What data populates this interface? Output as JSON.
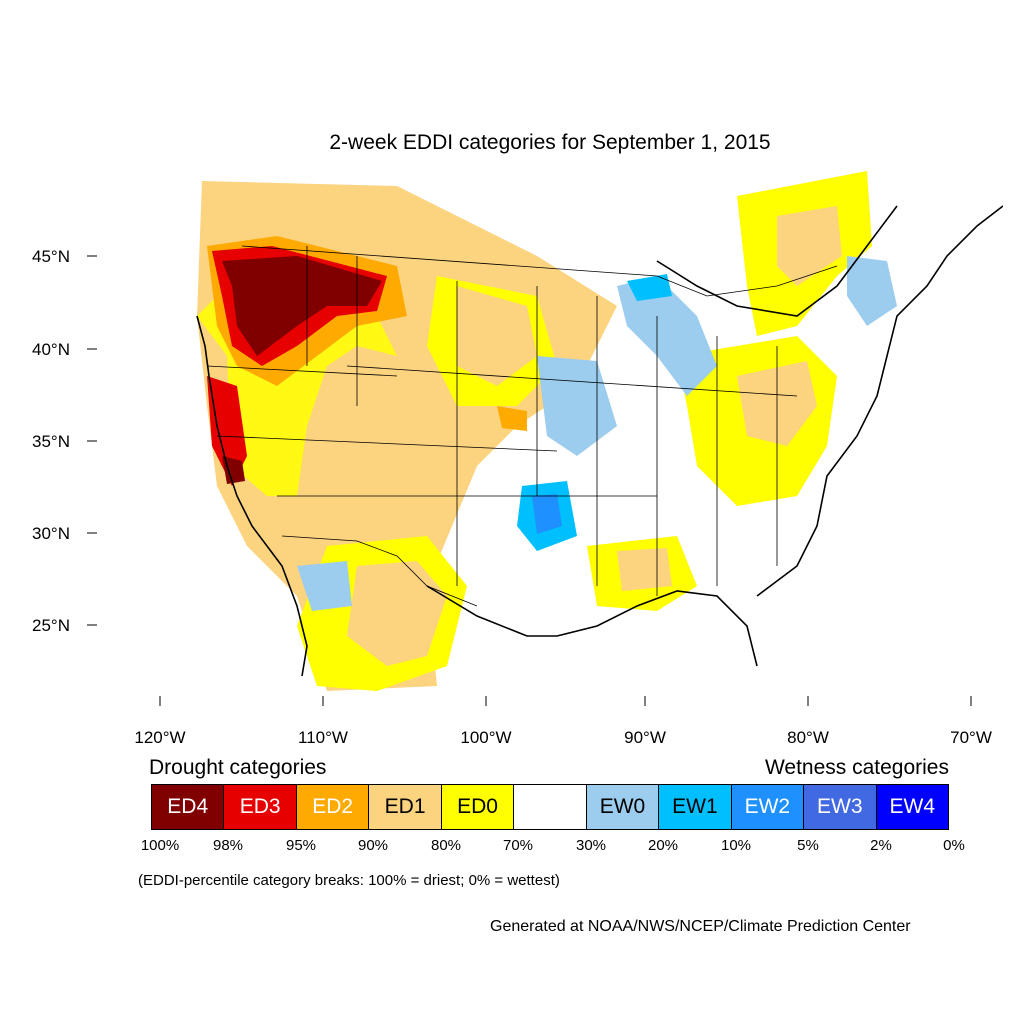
{
  "title": "2-week EDDI categories for September 1, 2015",
  "lat_labels": [
    "45°N",
    "40°N",
    "35°N",
    "30°N",
    "25°N"
  ],
  "lon_labels": [
    "120°W",
    "110°W",
    "100°W",
    "90°W",
    "80°W",
    "70°W"
  ],
  "drought_heading": "Drought categories",
  "wetness_heading": "Wetness categories",
  "categories": [
    {
      "label": "ED4",
      "color": "#800000",
      "text_color": "#ffffff"
    },
    {
      "label": "ED3",
      "color": "#e60000",
      "text_color": "#ffffff"
    },
    {
      "label": "ED2",
      "color": "#ffaa00",
      "text_color": "#ffffff"
    },
    {
      "label": "ED1",
      "color": "#fcd37f",
      "text_color": "#000000"
    },
    {
      "label": "ED0",
      "color": "#ffff00",
      "text_color": "#000000"
    },
    {
      "label": "",
      "color": "#ffffff",
      "text_color": "#000000"
    },
    {
      "label": "EW0",
      "color": "#9dcdee",
      "text_color": "#000000"
    },
    {
      "label": "EW1",
      "color": "#00bfff",
      "text_color": "#000000"
    },
    {
      "label": "EW2",
      "color": "#1e90ff",
      "text_color": "#ffffff"
    },
    {
      "label": "EW3",
      "color": "#4169e1",
      "text_color": "#ffffff"
    },
    {
      "label": "EW4",
      "color": "#0000ff",
      "text_color": "#ffffff"
    }
  ],
  "breaks": [
    "100%",
    "98%",
    "95%",
    "90%",
    "80%",
    "70%",
    "30%",
    "20%",
    "10%",
    "5%",
    "2%",
    "0%"
  ],
  "note": "(EDDI-percentile category breaks: 100% = driest; 0% = wettest)",
  "credit": "Generated at NOAA/NWS/NCEP/Climate Prediction Center"
}
